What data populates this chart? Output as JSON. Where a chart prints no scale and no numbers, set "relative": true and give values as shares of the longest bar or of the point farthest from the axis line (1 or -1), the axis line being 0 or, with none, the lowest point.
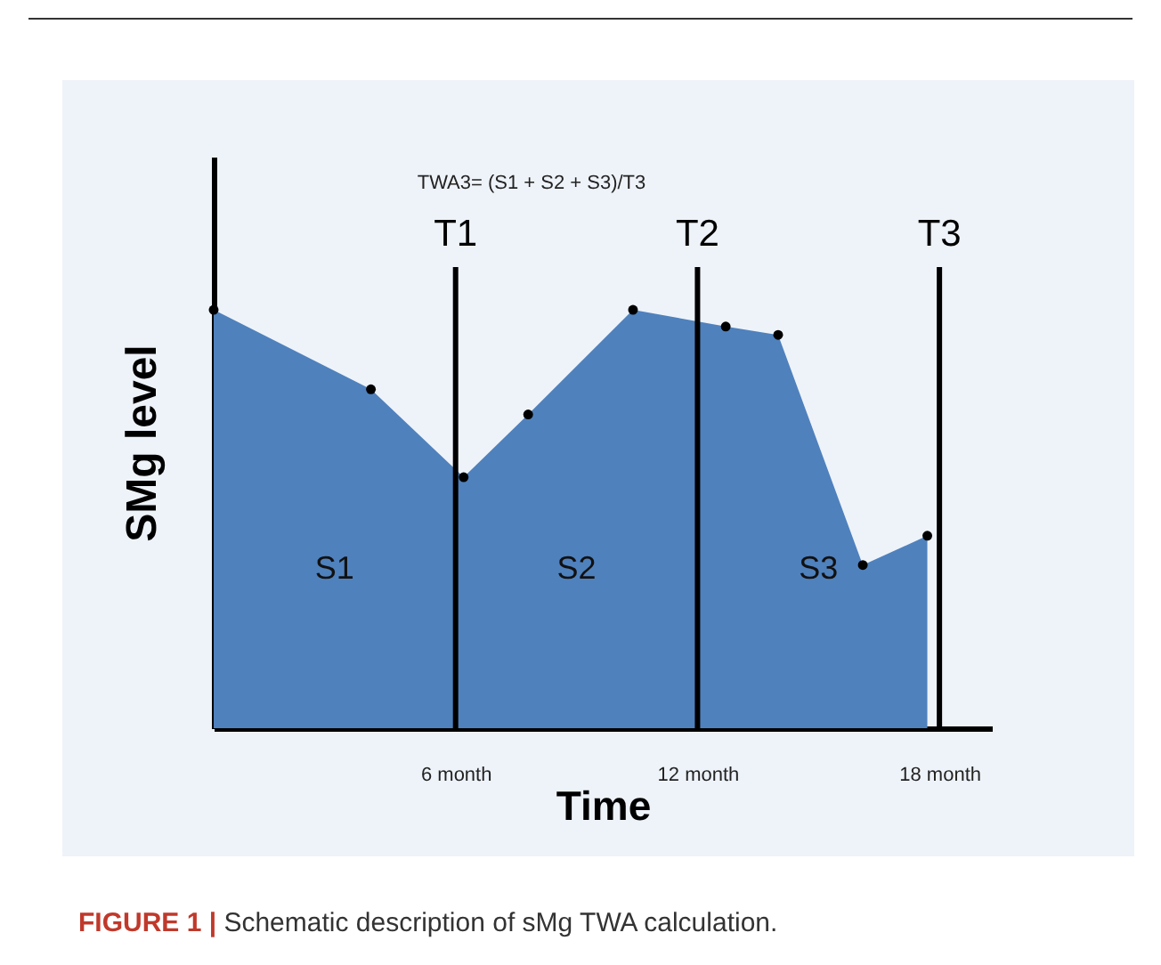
{
  "chart_data": {
    "type": "area",
    "title": "TWA3= (S1 + S2 + S3)/T3",
    "xlabel": "Time",
    "ylabel": "SMg  level",
    "relative": true,
    "marker": "circle",
    "grid": false,
    "x": [
      0,
      3.9,
      6.2,
      7.8,
      10.4,
      12.7,
      14.0,
      16.1,
      17.7
    ],
    "series": [
      {
        "color": "#4f81bd",
        "values": [
          1,
          0.81,
          0.6,
          0.75,
          1.0,
          0.96,
          0.94,
          0.39,
          0.46
        ]
      }
    ],
    "xlim": [
      0,
      19.3
    ],
    "xticks": [
      {
        "value": 6,
        "label": "6 month"
      },
      {
        "value": 12,
        "label": "12 month"
      },
      {
        "value": 18,
        "label": "18 month"
      }
    ],
    "ref_lines": [
      {
        "axis": "x",
        "value": 6,
        "label": "T1"
      },
      {
        "axis": "x",
        "value": 12,
        "label": "T2"
      },
      {
        "axis": "x",
        "value": 18,
        "label": "T3"
      }
    ],
    "annotations": [
      "S1",
      "S2",
      "S3",
      "FIGURE 1 | Schematic description of sMg TWA calculation."
    ]
  }
}
